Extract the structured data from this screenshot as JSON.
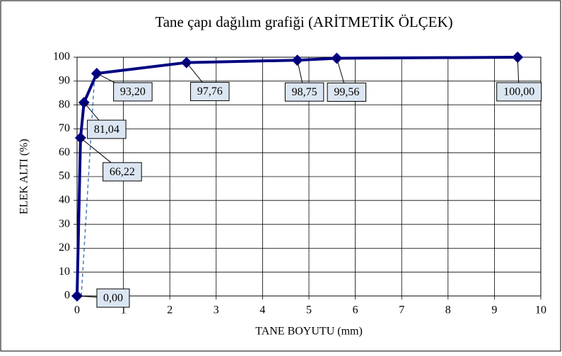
{
  "chart_data": {
    "type": "line",
    "title": "Tane çapı dağılım grafiği (ARİTMETİK ÖLÇEK)",
    "x_label": "TANE BOYUTU (mm)",
    "y_label": "ELEK ALTI (%)",
    "x": [
      0,
      0.075,
      0.15,
      0.425,
      2.36,
      4.75,
      5.6,
      9.5
    ],
    "series": [
      {
        "name": null,
        "color": "#000080",
        "values": [
          0,
          66.22,
          81.04,
          93.2,
          97.76,
          98.75,
          99.56,
          100
        ],
        "value_labels": [
          "0,00",
          "66,22",
          "81,04",
          "93,20",
          "97,76",
          "98,75",
          "99,56",
          "100,00"
        ]
      }
    ],
    "xlim": [
      0,
      10
    ],
    "xticks": [
      0,
      1,
      2,
      3,
      4,
      5,
      6,
      7,
      8,
      9,
      10
    ],
    "ylim": [
      0,
      100
    ],
    "yticks": [
      0,
      10,
      20,
      30,
      40,
      50,
      60,
      70,
      80,
      90,
      100
    ],
    "grid": true
  }
}
